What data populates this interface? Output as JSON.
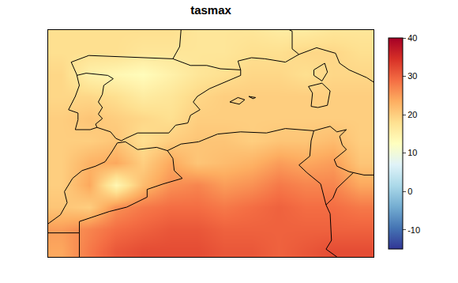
{
  "chart_data": {
    "type": "heatmap",
    "title": "tasmax",
    "x": [
      -10,
      -8,
      -6,
      -4,
      -2,
      0,
      2,
      4,
      6,
      8,
      10,
      12
    ],
    "y": [
      26,
      28,
      30,
      32,
      34,
      36,
      38,
      40,
      42,
      44,
      46
    ],
    "z": [
      [
        24,
        28,
        31,
        32,
        32,
        32,
        31,
        31,
        30,
        31,
        32,
        32
      ],
      [
        25,
        27,
        29,
        30,
        31,
        31,
        30,
        30,
        30,
        30,
        30,
        30
      ],
      [
        21,
        20,
        26,
        28,
        29,
        29,
        28,
        29,
        30,
        29,
        29,
        28
      ],
      [
        20,
        24,
        14,
        22,
        26,
        27,
        25,
        26,
        28,
        27,
        27,
        24
      ],
      [
        20,
        23,
        24,
        20,
        24,
        21,
        22,
        23,
        25,
        24,
        25,
        21
      ],
      [
        20,
        20,
        21,
        18,
        20,
        21,
        21,
        20,
        21,
        21,
        22,
        20
      ],
      [
        20,
        21,
        20,
        19,
        18,
        20,
        20,
        20,
        20,
        20,
        20,
        20
      ],
      [
        19,
        19,
        18,
        16,
        17,
        19,
        20,
        20,
        20,
        20,
        20,
        20
      ],
      [
        19,
        15,
        14,
        13,
        15,
        17,
        18,
        19,
        19,
        18,
        19,
        19
      ],
      [
        18,
        18,
        18,
        17,
        17,
        17,
        17,
        18,
        18,
        19,
        19,
        18
      ],
      [
        18,
        18,
        18,
        18,
        18,
        17,
        17,
        17,
        16,
        16,
        17,
        17
      ]
    ],
    "xlim": [
      -11,
      13
    ],
    "ylim": [
      25.5,
      46
    ],
    "tick_labels": false,
    "colorbar": {
      "range": [
        -15,
        40
      ],
      "ticks": [
        -10,
        0,
        10,
        20,
        30,
        40
      ]
    },
    "boundaries": [
      {
        "lon": [
          -1.2,
          -1.3,
          -1.8,
          -3.8,
          -5.7,
          -8.0,
          -9.3,
          -8.9,
          -8.7,
          -9.0,
          -9.5,
          -8.8,
          -8.8,
          -9.0,
          -7.9,
          -7.4,
          -6.4,
          -6.0,
          -5.6,
          -5.3,
          -4.4,
          -2.1,
          -1.6,
          -0.7,
          -0.5,
          0.2,
          -0.3,
          0.0,
          0.9,
          2.2,
          3.2,
          3.2,
          3.0,
          4.0,
          5.0,
          6.5,
          7.5,
          8.8,
          10.2,
          10.5,
          11.2,
          12.5,
          13.0
        ],
        "lat": [
          46.0,
          44.5,
          43.4,
          43.5,
          43.6,
          43.7,
          43.1,
          42.0,
          41.0,
          40.0,
          38.8,
          38.5,
          37.9,
          37.0,
          37.0,
          37.2,
          36.8,
          36.2,
          36.0,
          36.2,
          36.7,
          36.7,
          37.4,
          37.6,
          38.3,
          38.8,
          39.5,
          40.0,
          40.7,
          41.4,
          41.9,
          42.4,
          43.2,
          43.5,
          43.4,
          43.1,
          43.8,
          44.4,
          43.9,
          43.0,
          42.4,
          41.7,
          41.3
        ]
      },
      {
        "lon": [
          -8.9,
          -8.2,
          -6.6,
          -6.2,
          -6.9,
          -7.0,
          -7.3,
          -7.0,
          -7.3,
          -7.0,
          -7.5,
          -7.4
        ],
        "lat": [
          41.9,
          42.1,
          41.9,
          41.6,
          41.0,
          40.2,
          39.5,
          39.0,
          38.4,
          38.0,
          37.5,
          37.2
        ]
      },
      {
        "lon": [
          -1.8,
          -0.5,
          0.7,
          1.7,
          3.2
        ],
        "lat": [
          43.4,
          42.8,
          42.8,
          42.5,
          42.4
        ]
      },
      {
        "lon": [
          7.5,
          7.0,
          7.0,
          7.0,
          6.8
        ],
        "lat": [
          43.8,
          44.3,
          45.0,
          45.9,
          46.0
        ]
      },
      {
        "lon": [
          -11.0,
          -10.1,
          -9.6,
          -9.8,
          -9.2,
          -8.5,
          -7.5,
          -6.8,
          -6.3,
          -5.9,
          -5.3,
          -4.4,
          -3.0,
          -2.2,
          -1.2,
          0.1,
          1.5,
          3.2,
          5.1,
          6.5,
          8.6,
          9.8,
          10.3,
          11.0,
          10.5,
          10.7,
          11.0,
          10.1,
          10.3,
          11.2,
          12.3,
          13.0
        ],
        "lat": [
          28.5,
          29.3,
          30.4,
          31.4,
          32.6,
          33.3,
          33.7,
          34.1,
          35.0,
          35.8,
          35.9,
          35.2,
          35.4,
          35.1,
          35.7,
          35.9,
          36.6,
          36.8,
          36.7,
          37.1,
          36.9,
          37.3,
          36.8,
          37.0,
          36.4,
          35.6,
          35.2,
          34.3,
          33.7,
          33.2,
          32.9,
          32.9
        ]
      },
      {
        "lon": [
          -2.2,
          -1.8,
          -1.7,
          -1.1,
          -2.5,
          -3.7,
          -3.7,
          -5.2,
          -6.5,
          -8.7,
          -8.7,
          -8.7,
          -8.7
        ],
        "lat": [
          35.1,
          34.4,
          33.3,
          32.6,
          32.1,
          31.6,
          30.9,
          30.0,
          29.6,
          28.7,
          27.7,
          27.3,
          25.5
        ]
      },
      {
        "lon": [
          -8.7,
          -11.0
        ],
        "lat": [
          27.67,
          27.67
        ]
      },
      {
        "lon": [
          8.6,
          8.4,
          8.3,
          7.5,
          8.1,
          9.1,
          9.5
        ],
        "lat": [
          36.9,
          36.0,
          34.6,
          33.8,
          33.1,
          32.1,
          30.2
        ]
      },
      {
        "lon": [
          11.5,
          10.3,
          10.0,
          9.5
        ],
        "lat": [
          33.1,
          31.7,
          30.8,
          30.2
        ]
      },
      {
        "lon": [
          9.5,
          9.8,
          9.9,
          9.5,
          10.3
        ],
        "lat": [
          30.2,
          29.4,
          27.0,
          26.2,
          25.5
        ]
      },
      {
        "lon": [
          9.4,
          9.6,
          9.2,
          8.6,
          8.6,
          9.4
        ],
        "lat": [
          43.0,
          42.2,
          41.4,
          41.9,
          42.4,
          43.0
        ]
      },
      {
        "lon": [
          9.2,
          9.8,
          9.6,
          8.9,
          8.4,
          8.5,
          8.2,
          9.2
        ],
        "lat": [
          41.2,
          40.5,
          39.2,
          39.0,
          39.1,
          40.3,
          40.9,
          41.2
        ]
      },
      {
        "lon": [
          2.4,
          3.0,
          3.5,
          3.1,
          2.4
        ],
        "lat": [
          39.5,
          39.9,
          39.7,
          39.3,
          39.5
        ]
      },
      {
        "lon": [
          3.8,
          4.3,
          4.1,
          3.8
        ],
        "lat": [
          40.0,
          39.9,
          39.8,
          40.0
        ]
      }
    ]
  }
}
